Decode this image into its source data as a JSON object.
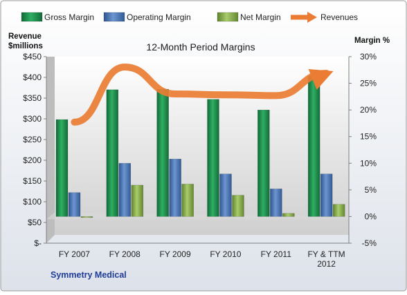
{
  "chart_data": {
    "type": "bar",
    "title": "12-Month Period Margins",
    "company": "Symmetry Medical",
    "left_axis_label": [
      "Revenue",
      "$millions"
    ],
    "right_axis_label": "Margin %",
    "categories": [
      [
        "FY 2007"
      ],
      [
        "FY 2008"
      ],
      [
        "FY 2009"
      ],
      [
        "FY 2010"
      ],
      [
        "FY 2011"
      ],
      [
        "FY & TTM",
        "2012"
      ]
    ],
    "left_axis": {
      "min": 0,
      "max": 450,
      "step": 50,
      "tick_labels": [
        "$-",
        "$50",
        "$100",
        "$150",
        "$200",
        "$250",
        "$300",
        "$350",
        "$400",
        "$450"
      ]
    },
    "right_axis": {
      "min": -5,
      "max": 30,
      "step": 5,
      "tick_labels": [
        "-5%",
        "0%",
        "5%",
        "10%",
        "15%",
        "20%",
        "25%",
        "30%"
      ]
    },
    "series": [
      {
        "name": "Gross Margin",
        "type": "bar",
        "axis": "right",
        "values": [
          18.2,
          23.8,
          23.9,
          22.0,
          20.0,
          26.4
        ],
        "color": "#1e8c4e"
      },
      {
        "name": "Operating Margin",
        "type": "bar",
        "axis": "right",
        "values": [
          4.5,
          10.0,
          10.8,
          8.0,
          5.2,
          8.0
        ],
        "color": "#4f79b8"
      },
      {
        "name": "Net Margin",
        "type": "bar",
        "axis": "right",
        "values": [
          0.0,
          5.9,
          6.1,
          4.0,
          0.6,
          2.3
        ],
        "color": "#8db055"
      },
      {
        "name": "Revenues",
        "type": "line",
        "axis": "left",
        "values": [
          292,
          425,
          360,
          358,
          356,
          410
        ],
        "color": "#ea7d33"
      }
    ],
    "grid": false,
    "legend_position": "top"
  }
}
